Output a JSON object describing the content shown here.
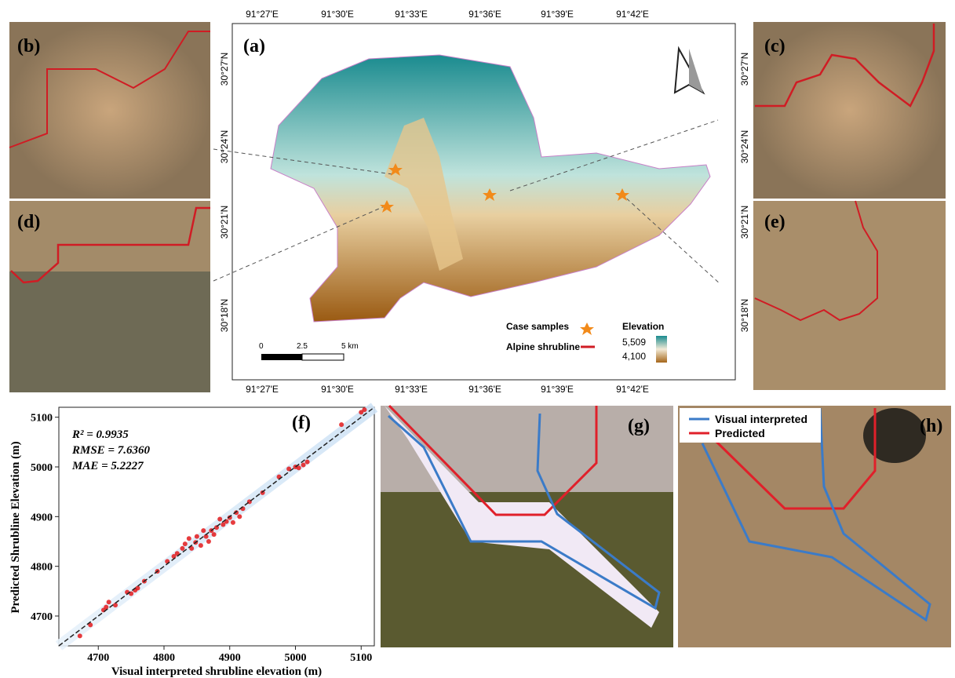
{
  "photo_panels": {
    "b": "(b)",
    "c": "(c)",
    "d": "(d)",
    "e": "(e)",
    "g": "(g)",
    "h": "(h)"
  },
  "map": {
    "label": "(a)",
    "lon_labels": [
      "91°27'E",
      "91°30'E",
      "91°33'E",
      "91°36'E",
      "91°39'E",
      "91°42'E"
    ],
    "lat_labels": [
      "30°27'N",
      "30°24'N",
      "30°21'N",
      "30°18'N"
    ],
    "legend": {
      "case_samples": "Case samples",
      "shrubline": "Alpine shrubline",
      "elevation": "Elevation",
      "elev_max": "5,509",
      "elev_min": "4,100"
    },
    "scale_bar": [
      "0",
      "2.5",
      "5 km"
    ]
  },
  "overlay_legend": {
    "visual": "Visual interpreted",
    "predicted": "Predicted"
  },
  "chart_data": {
    "type": "scatter",
    "label": "(f)",
    "x_label": "Visual interpreted shrubline elevation (m)",
    "y_label": "Predicted Shrubline Elevation (m)",
    "annotations": [
      "R² = 0.9935",
      "RMSE = 7.6360",
      "MAE = 5.2227"
    ],
    "color": "#e31a1c",
    "xlim": [
      4640,
      5120
    ],
    "ylim": [
      4640,
      5120
    ],
    "xticks": [
      4700,
      4800,
      4900,
      5000,
      5100
    ],
    "yticks": [
      4700,
      4800,
      4900,
      5000,
      5100
    ],
    "x": [
      4672,
      4688,
      4708,
      4712,
      4716,
      4726,
      4744,
      4750,
      4756,
      4760,
      4770,
      4790,
      4805,
      4815,
      4820,
      4828,
      4832,
      4838,
      4842,
      4848,
      4850,
      4856,
      4860,
      4864,
      4868,
      4872,
      4876,
      4880,
      4885,
      4890,
      4895,
      4900,
      4905,
      4910,
      4915,
      4920,
      4930,
      4950,
      4975,
      4990,
      5000,
      5005,
      5012,
      5018,
      5070,
      5100,
      5105
    ],
    "y": [
      4660,
      4682,
      4712,
      4718,
      4728,
      4722,
      4748,
      4745,
      4752,
      4756,
      4770,
      4790,
      4810,
      4820,
      4826,
      4836,
      4845,
      4856,
      4836,
      4848,
      4860,
      4842,
      4872,
      4860,
      4850,
      4872,
      4864,
      4878,
      4895,
      4884,
      4890,
      4898,
      4888,
      4908,
      4900,
      4916,
      4930,
      4948,
      4980,
      4996,
      5000,
      4998,
      5004,
      5010,
      5085,
      5110,
      5115
    ]
  }
}
